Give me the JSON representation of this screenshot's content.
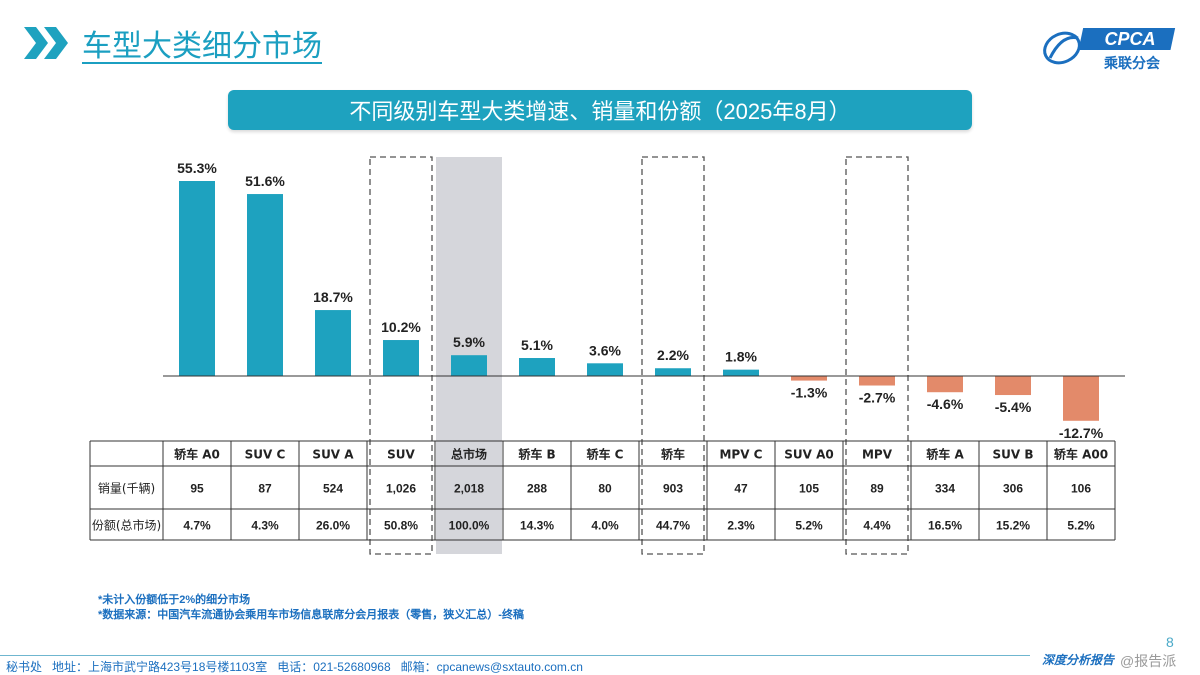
{
  "page": {
    "title": "车型大类细分市场",
    "banner": "不同级别车型大类增速、销量和份额（2025年8月）",
    "logo_text": "CPCA",
    "logo_subtext": "乘联分会",
    "page_number": "8",
    "footnotes": [
      "*未计入份额低于2%的细分市场",
      "*数据来源：中国汽车流通协会乘用车市场信息联席分会月报表（零售，狭义汇总）-终稿"
    ],
    "footer": {
      "secretariat": "秘书处",
      "address": "地址：上海市武宁路423号18号楼1103室",
      "phone": "电话：021-52680968",
      "email": "邮箱：cpcanews@sxtauto.com.cn",
      "right_text": "深度分析报告",
      "mark": "@报告派"
    },
    "colors": {
      "accent": "#1ea2bf",
      "positive": "#1ea2bf",
      "negative": "#e38a6a",
      "highlight": "#d5d6db"
    }
  },
  "chart_data": {
    "type": "bar",
    "categories": [
      "轿车 A0",
      "SUV C",
      "SUV A",
      "SUV",
      "总市场",
      "轿车 B",
      "轿车 C",
      "轿车",
      "MPV C",
      "SUV A0",
      "MPV",
      "轿车 A",
      "SUV B",
      "轿车 A00"
    ],
    "values": [
      55.3,
      51.6,
      18.7,
      10.2,
      5.9,
      5.1,
      3.6,
      2.2,
      1.8,
      -1.3,
      -2.7,
      -4.6,
      -5.4,
      -12.7
    ],
    "value_labels": [
      "55.3%",
      "51.6%",
      "18.7%",
      "10.2%",
      "5.9%",
      "5.1%",
      "3.6%",
      "2.2%",
      "1.8%",
      "-1.3%",
      "-2.7%",
      "-4.6%",
      "-5.4%",
      "-12.7%"
    ],
    "ylim": [
      -16,
      60
    ],
    "grid": false,
    "highlight_total": "总市场",
    "dashed_boxes": [
      "SUV",
      "轿车",
      "MPV"
    ],
    "table": {
      "row_headers": [
        "销量(千辆)",
        "份额(总市场)"
      ],
      "sales": [
        "95",
        "87",
        "524",
        "1,026",
        "2,018",
        "288",
        "80",
        "903",
        "47",
        "105",
        "89",
        "334",
        "306",
        "106"
      ],
      "share": [
        "4.7%",
        "4.3%",
        "26.0%",
        "50.8%",
        "100.0%",
        "14.3%",
        "4.0%",
        "44.7%",
        "2.3%",
        "5.2%",
        "4.4%",
        "16.5%",
        "15.2%",
        "5.2%"
      ]
    }
  }
}
